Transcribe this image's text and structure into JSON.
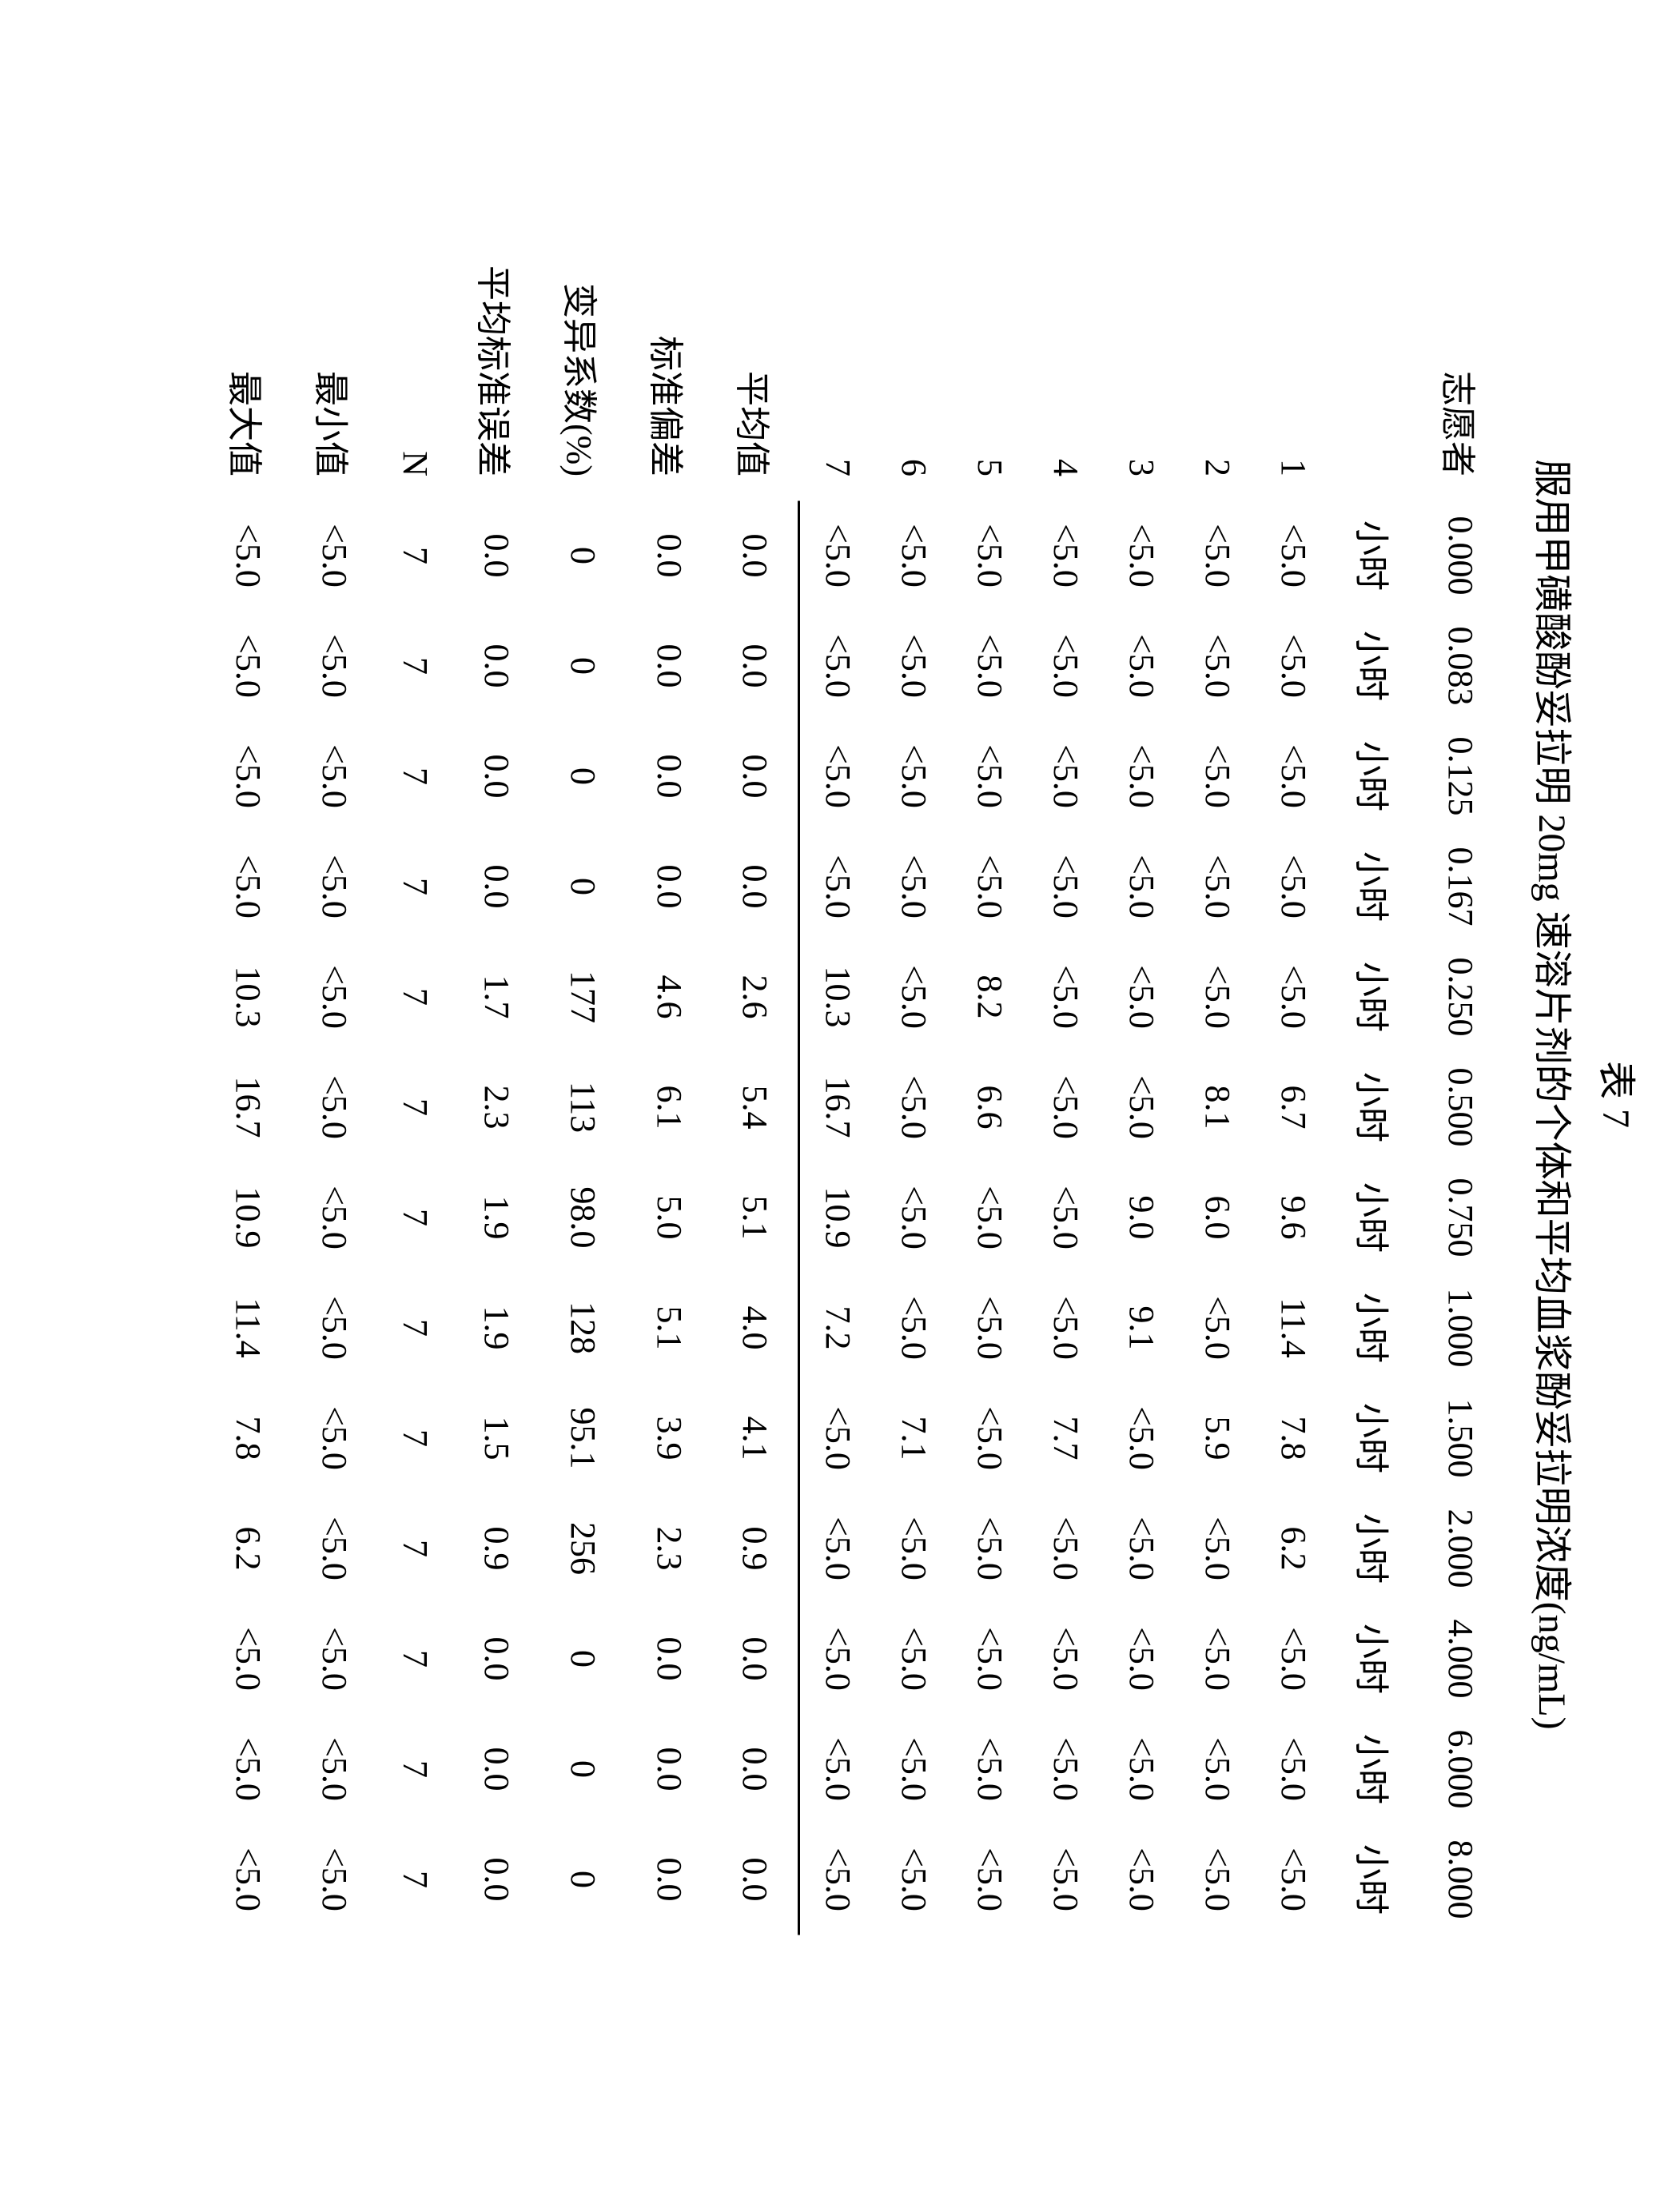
{
  "caption": "表 7",
  "title": "服用甲磺酸酚妥拉明 20mg 速溶片剂的个体和平均血浆酚妥拉明浓度(ng/mL)",
  "header_label": "志愿者",
  "timepoints": [
    "0.000",
    "0.083",
    "0.125",
    "0.167",
    "0.250",
    "0.500",
    "0.750",
    "1.000",
    "1.500",
    "2.000",
    "4.000",
    "6.000",
    "8.000"
  ],
  "unit_row": [
    "小时",
    "小时",
    "小时",
    "小时",
    "小时",
    "小时",
    "小时",
    "小时",
    "小时",
    "小时",
    "小时",
    "小时",
    "小时"
  ],
  "subjects": [
    {
      "id": "1",
      "vals": [
        "<5.0",
        "<5.0",
        "<5.0",
        "<5.0",
        "<5.0",
        "6.7",
        "9.6",
        "11.4",
        "7.8",
        "6.2",
        "<5.0",
        "<5.0",
        "<5.0"
      ]
    },
    {
      "id": "2",
      "vals": [
        "<5.0",
        "<5.0",
        "<5.0",
        "<5.0",
        "<5.0",
        "8.1",
        "6.0",
        "<5.0",
        "5.9",
        "<5.0",
        "<5.0",
        "<5.0",
        "<5.0"
      ]
    },
    {
      "id": "3",
      "vals": [
        "<5.0",
        "<5.0",
        "<5.0",
        "<5.0",
        "<5.0",
        "<5.0",
        "9.0",
        "9.1",
        "<5.0",
        "<5.0",
        "<5.0",
        "<5.0",
        "<5.0"
      ]
    },
    {
      "id": "4",
      "vals": [
        "<5.0",
        "<5.0",
        "<5.0",
        "<5.0",
        "<5.0",
        "<5.0",
        "<5.0",
        "<5.0",
        "7.7",
        "<5.0",
        "<5.0",
        "<5.0",
        "<5.0"
      ]
    },
    {
      "id": "5",
      "vals": [
        "<5.0",
        "<5.0",
        "<5.0",
        "<5.0",
        "8.2",
        "6.6",
        "<5.0",
        "<5.0",
        "<5.0",
        "<5.0",
        "<5.0",
        "<5.0",
        "<5.0"
      ]
    },
    {
      "id": "6",
      "vals": [
        "<5.0",
        "<5.0",
        "<5.0",
        "<5.0",
        "<5.0",
        "<5.0",
        "<5.0",
        "<5.0",
        "7.1",
        "<5.0",
        "<5.0",
        "<5.0",
        "<5.0"
      ]
    },
    {
      "id": "7",
      "vals": [
        "<5.0",
        "<5.0",
        "<5.0",
        "<5.0",
        "10.3",
        "16.7",
        "10.9",
        "7.2",
        "<5.0",
        "<5.0",
        "<5.0",
        "<5.0",
        "<5.0"
      ]
    }
  ],
  "stats": [
    {
      "label": "平均值",
      "vals": [
        "0.0",
        "0.0",
        "0.0",
        "0.0",
        "2.6",
        "5.4",
        "5.1",
        "4.0",
        "4.1",
        "0.9",
        "0.0",
        "0.0",
        "0.0"
      ]
    },
    {
      "label": "标准偏差",
      "vals": [
        "0.0",
        "0.0",
        "0.0",
        "0.0",
        "4.6",
        "6.1",
        "5.0",
        "5.1",
        "3.9",
        "2.3",
        "0.0",
        "0.0",
        "0.0"
      ]
    },
    {
      "label": "变异系数(%)",
      "vals": [
        "0",
        "0",
        "0",
        "0",
        "177",
        "113",
        "98.0",
        "128",
        "95.1",
        "256",
        "0",
        "0",
        "0"
      ]
    },
    {
      "label": "平均标准误差",
      "vals": [
        "0.0",
        "0.0",
        "0.0",
        "0.0",
        "1.7",
        "2.3",
        "1.9",
        "1.9",
        "1.5",
        "0.9",
        "0.0",
        "0.0",
        "0.0"
      ]
    },
    {
      "label": "N",
      "vals": [
        "7",
        "7",
        "7",
        "7",
        "7",
        "7",
        "7",
        "7",
        "7",
        "7",
        "7",
        "7",
        "7"
      ]
    },
    {
      "label": "最小值",
      "vals": [
        "<5.0",
        "<5.0",
        "<5.0",
        "<5.0",
        "<5.0",
        "<5.0",
        "<5.0",
        "<5.0",
        "<5.0",
        "<5.0",
        "<5.0",
        "<5.0",
        "<5.0"
      ]
    },
    {
      "label": "最大值",
      "vals": [
        "<5.0",
        "<5.0",
        "<5.0",
        "<5.0",
        "10.3",
        "16.7",
        "10.9",
        "11.4",
        "7.8",
        "6.2",
        "<5.0",
        "<5.0",
        "<5.0"
      ]
    }
  ]
}
